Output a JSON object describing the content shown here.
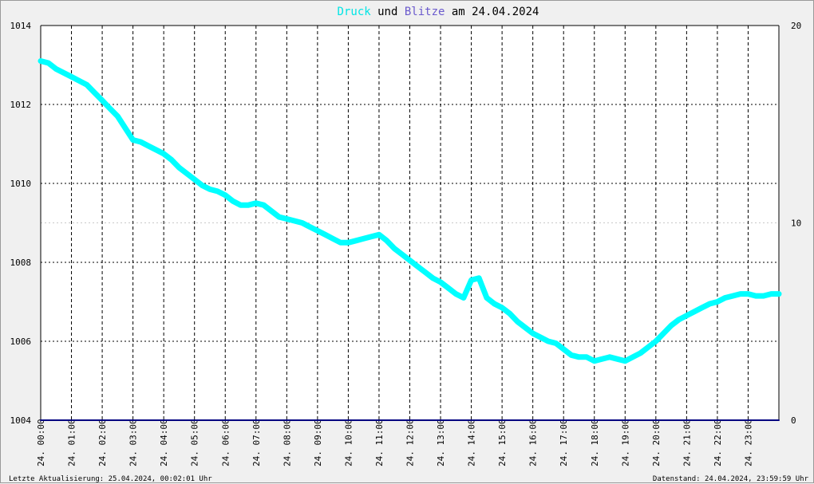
{
  "title": {
    "part1": "Druck",
    "part2": " und ",
    "part3": "Blitze",
    "part4": " am 24.04.2024",
    "color1": "#00e5e5",
    "color3": "#6a5acd",
    "color_text": "#000000"
  },
  "footer": {
    "left": "Letzte Aktualisierung: 25.04.2024, 00:02:01 Uhr",
    "right": "Datenstand: 24.04.2024, 23:59:59 Uhr"
  },
  "chart_data": {
    "type": "line",
    "title": "Druck und Blitze am 24.04.2024",
    "x_range": [
      0,
      24
    ],
    "y_left": {
      "range": [
        1004,
        1014
      ],
      "ticks": [
        1004,
        1006,
        1008,
        1010,
        1012,
        1014
      ]
    },
    "y_right": {
      "range": [
        0,
        20
      ],
      "ticks": [
        0,
        10,
        20
      ]
    },
    "x_tick_labels": [
      "24. 00:00",
      "24. 01:00",
      "24. 02:00",
      "24. 03:00",
      "24. 04:00",
      "24. 05:00",
      "24. 06:00",
      "24. 07:00",
      "24. 08:00",
      "24. 09:00",
      "24. 10:00",
      "24. 11:00",
      "24. 12:00",
      "24. 13:00",
      "24. 14:00",
      "24. 15:00",
      "24. 16:00",
      "24. 17:00",
      "24. 18:00",
      "24. 19:00",
      "24. 20:00",
      "24. 21:00",
      "24. 22:00",
      "24. 23:00"
    ],
    "grid": true,
    "series": [
      {
        "name": "Druck",
        "axis": "left",
        "color": "#00ffff",
        "x": [
          0,
          0.25,
          0.5,
          0.75,
          1,
          1.25,
          1.5,
          1.75,
          2,
          2.25,
          2.5,
          2.75,
          3,
          3.25,
          3.5,
          3.75,
          4,
          4.25,
          4.5,
          4.75,
          5,
          5.25,
          5.5,
          5.75,
          6,
          6.25,
          6.5,
          6.75,
          7,
          7.25,
          7.5,
          7.75,
          8,
          8.25,
          8.5,
          8.75,
          9,
          9.25,
          9.5,
          9.75,
          10,
          10.25,
          10.5,
          10.75,
          11,
          11.25,
          11.5,
          11.75,
          12,
          12.25,
          12.5,
          12.75,
          13,
          13.25,
          13.5,
          13.75,
          14,
          14.25,
          14.5,
          14.75,
          15,
          15.25,
          15.5,
          15.75,
          16,
          16.25,
          16.5,
          16.75,
          17,
          17.25,
          17.5,
          17.75,
          18,
          18.25,
          18.5,
          18.75,
          19,
          19.25,
          19.5,
          19.75,
          20,
          20.25,
          20.5,
          20.75,
          21,
          21.25,
          21.5,
          21.75,
          22,
          22.25,
          22.5,
          22.75,
          23,
          23.25,
          23.5,
          23.75,
          24
        ],
        "values": [
          1013.1,
          1013.05,
          1012.9,
          1012.8,
          1012.7,
          1012.6,
          1012.5,
          1012.3,
          1012.1,
          1011.9,
          1011.7,
          1011.4,
          1011.1,
          1011.05,
          1010.95,
          1010.85,
          1010.75,
          1010.6,
          1010.4,
          1010.25,
          1010.1,
          1009.95,
          1009.85,
          1009.8,
          1009.7,
          1009.55,
          1009.45,
          1009.45,
          1009.5,
          1009.45,
          1009.3,
          1009.15,
          1009.1,
          1009.05,
          1009.0,
          1008.9,
          1008.8,
          1008.7,
          1008.6,
          1008.5,
          1008.5,
          1008.55,
          1008.6,
          1008.65,
          1008.7,
          1008.55,
          1008.35,
          1008.2,
          1008.05,
          1007.9,
          1007.75,
          1007.6,
          1007.5,
          1007.35,
          1007.2,
          1007.1,
          1007.55,
          1007.6,
          1007.1,
          1006.95,
          1006.85,
          1006.7,
          1006.5,
          1006.35,
          1006.2,
          1006.1,
          1006.0,
          1005.95,
          1005.8,
          1005.65,
          1005.6,
          1005.6,
          1005.5,
          1005.55,
          1005.6,
          1005.55,
          1005.5,
          1005.6,
          1005.7,
          1005.85,
          1006.0,
          1006.2,
          1006.4,
          1006.55,
          1006.65,
          1006.75,
          1006.85,
          1006.95,
          1007.0,
          1007.1,
          1007.15,
          1007.2,
          1007.2,
          1007.15,
          1007.15,
          1007.2,
          1007.2
        ]
      },
      {
        "name": "Blitze",
        "axis": "right",
        "color": "#000080",
        "x": [
          0,
          24
        ],
        "values": [
          0,
          0
        ]
      }
    ]
  }
}
